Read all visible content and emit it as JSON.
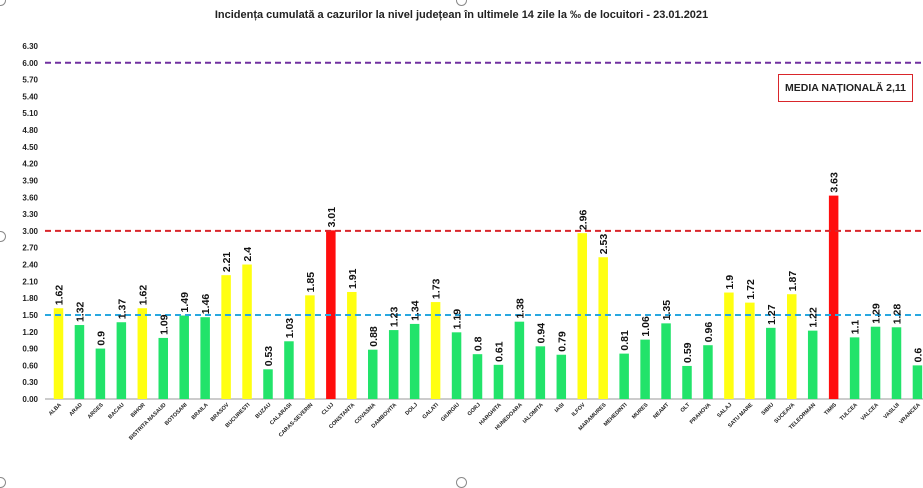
{
  "title": "Incidența cumulată a cazurilor la nivel județean în ultimele 14 zile la ‰ de locuitori - 23.01.2021",
  "media_label": "MEDIA NAȚIONALĂ 2,11",
  "colors": {
    "green": "#22e36a",
    "yellow": "#ffff11",
    "red": "#ff0d0d",
    "line_purple": "#7030a0",
    "line_red": "#d9262b",
    "line_blue": "#29a8e0"
  },
  "chart_data": {
    "type": "bar",
    "title": "Incidența cumulată a cazurilor la nivel județean în ultimele 14 zile la ‰ de locuitori - 23.01.2021",
    "xlabel": "",
    "ylabel": "",
    "ylim": [
      0,
      6.3
    ],
    "yticks": [
      "0.00",
      "0.30",
      "0.60",
      "0.90",
      "1.20",
      "1.50",
      "1.80",
      "2.10",
      "2.40",
      "2.70",
      "3.00",
      "3.30",
      "3.60",
      "3.90",
      "4.20",
      "4.50",
      "4.80",
      "5.10",
      "5.40",
      "5.70",
      "6.00",
      "6.30"
    ],
    "grid": false,
    "categories": [
      "ALBA",
      "ARAD",
      "ARGES",
      "BACAU",
      "BIHOR",
      "BISTRITA NASAUD",
      "BOTOSANI",
      "BRAILA",
      "BRASOV",
      "BUCURESTI",
      "BUZAU",
      "CALARASI",
      "CARAS-SEVERIN",
      "CLUJ",
      "CONSTANTA",
      "COVASNA",
      "DAMBOVITA",
      "DOLJ",
      "GALATI",
      "GIURGIU",
      "GORJ",
      "HARGHITA",
      "HUNEDOARA",
      "IALOMITA",
      "IASI",
      "ILFOV",
      "MARAMURES",
      "MEHEDINTI",
      "MURES",
      "NEAMT",
      "OLT",
      "PRAHOVA",
      "SALAJ",
      "SATU MARE",
      "SIBIU",
      "SUCEAVA",
      "TELEORMAN",
      "TIMIS",
      "TULCEA",
      "VALCEA",
      "VASLUI",
      "VRANCEA"
    ],
    "values": [
      1.62,
      1.32,
      0.9,
      1.37,
      1.62,
      1.09,
      1.49,
      1.46,
      2.21,
      2.4,
      0.53,
      1.03,
      1.85,
      3.01,
      1.91,
      0.88,
      1.23,
      1.34,
      1.73,
      1.19,
      0.8,
      0.61,
      1.38,
      0.94,
      0.79,
      2.96,
      2.53,
      0.81,
      1.06,
      1.35,
      0.59,
      0.96,
      1.9,
      1.72,
      1.27,
      1.87,
      1.22,
      3.63,
      1.1,
      1.29,
      1.28,
      0.6
    ],
    "value_labels": [
      "1.62",
      "1.32",
      "0.9",
      "1.37",
      "1.62",
      "1.09",
      "1.49",
      "1.46",
      "2.21",
      "2.4",
      "0.53",
      "1.03",
      "1.85",
      "3.01",
      "1.91",
      "0.88",
      "1.23",
      "1.34",
      "1.73",
      "1.19",
      "0.8",
      "0.61",
      "1.38",
      "0.94",
      "0.79",
      "2.96",
      "2.53",
      "0.81",
      "1.06",
      "1.35",
      "0.59",
      "0.96",
      "1.9",
      "1.72",
      "1.27",
      "1.87",
      "1.22",
      "3.63",
      "1.1",
      "1.29",
      "1.28",
      "0.6"
    ],
    "bar_colors": [
      "yellow",
      "green",
      "green",
      "green",
      "yellow",
      "green",
      "green",
      "green",
      "yellow",
      "yellow",
      "green",
      "green",
      "yellow",
      "red",
      "yellow",
      "green",
      "green",
      "green",
      "yellow",
      "green",
      "green",
      "green",
      "green",
      "green",
      "green",
      "yellow",
      "yellow",
      "green",
      "green",
      "green",
      "green",
      "green",
      "yellow",
      "yellow",
      "green",
      "yellow",
      "green",
      "red",
      "green",
      "green",
      "green",
      "green"
    ],
    "reference_lines": [
      {
        "value": 6.0,
        "color": "purple"
      },
      {
        "value": 3.0,
        "color": "red"
      },
      {
        "value": 1.5,
        "color": "blue"
      }
    ]
  }
}
